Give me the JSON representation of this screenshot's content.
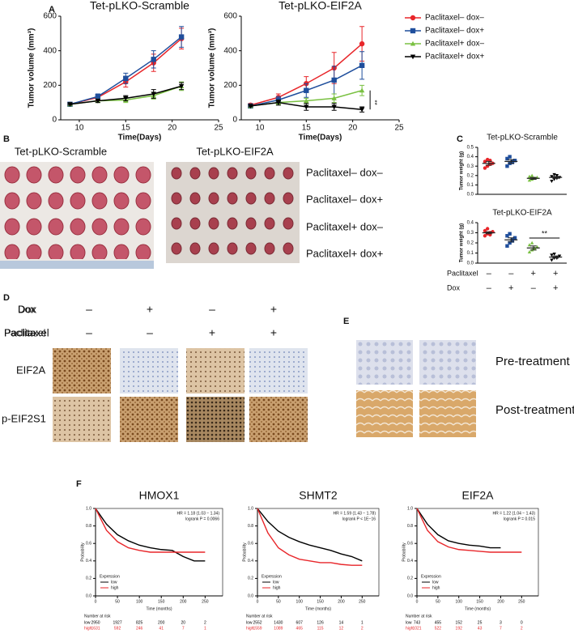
{
  "panel_labels": [
    "A",
    "B",
    "C",
    "D",
    "E",
    "F"
  ],
  "chart_data": [
    {
      "type": "line",
      "title": "Tet-pLKO-Scramble",
      "xlabel": "Time(Days)",
      "ylabel": "Tumor volume (mm³)",
      "x": [
        9,
        12,
        15,
        18,
        21
      ],
      "xlim": [
        8,
        25
      ],
      "xticks": [
        10,
        15,
        20,
        25
      ],
      "ylim": [
        0,
        600
      ],
      "yticks": [
        0,
        200,
        400,
        600
      ],
      "series": [
        {
          "name": "Paclitaxel– dox–",
          "color": "#e8262a",
          "marker": "circle",
          "values": [
            90,
            130,
            220,
            330,
            470
          ],
          "errors": [
            10,
            15,
            30,
            50,
            60
          ]
        },
        {
          "name": "Paclitaxel– dox+",
          "color": "#1f4e9c",
          "marker": "square",
          "values": [
            90,
            135,
            240,
            350,
            480
          ],
          "errors": [
            10,
            15,
            30,
            50,
            60
          ]
        },
        {
          "name": "Paclitaxel+ dox–",
          "color": "#7ac142",
          "marker": "triangle",
          "values": [
            90,
            110,
            115,
            140,
            195
          ],
          "errors": [
            5,
            10,
            15,
            20,
            25
          ]
        },
        {
          "name": "Paclitaxel+ dox+",
          "color": "#000000",
          "marker": "triangle-down",
          "values": [
            90,
            110,
            125,
            150,
            195
          ],
          "errors": [
            5,
            10,
            15,
            25,
            20
          ]
        }
      ]
    },
    {
      "type": "line",
      "title": "Tet-pLKO-EIF2A",
      "xlabel": "Time(Days)",
      "ylabel": "Tumor volume (mm³)",
      "x": [
        9,
        12,
        15,
        18,
        21
      ],
      "xlim": [
        8,
        25
      ],
      "xticks": [
        10,
        15,
        20,
        25
      ],
      "ylim": [
        0,
        600
      ],
      "yticks": [
        0,
        200,
        400,
        600
      ],
      "annotations": [
        "**"
      ],
      "series": [
        {
          "color": "#e8262a",
          "marker": "circle",
          "values": [
            85,
            130,
            210,
            300,
            440
          ],
          "errors": [
            10,
            20,
            40,
            90,
            100
          ]
        },
        {
          "color": "#1f4e9c",
          "marker": "square",
          "values": [
            80,
            115,
            170,
            230,
            315
          ],
          "errors": [
            10,
            20,
            40,
            80,
            80
          ]
        },
        {
          "color": "#7ac142",
          "marker": "triangle",
          "values": [
            80,
            100,
            110,
            125,
            170
          ],
          "errors": [
            5,
            10,
            15,
            25,
            30
          ]
        },
        {
          "color": "#000000",
          "marker": "triangle-down",
          "values": [
            80,
            100,
            75,
            75,
            60
          ],
          "errors": [
            5,
            15,
            20,
            20,
            15
          ]
        }
      ]
    },
    {
      "type": "dot",
      "title": "Tet-pLKO-Scramble",
      "ylabel": "Tumor weight (g)",
      "ylim": [
        0,
        0.5
      ],
      "yticks": [
        {
          "value": 0,
          "label": "0.0"
        },
        {
          "value": 0.1,
          "label": "0.1"
        },
        {
          "value": 0.2,
          "label": "0.2"
        },
        {
          "value": 0.3,
          "label": "0.3"
        },
        {
          "value": 0.4,
          "label": "0.4"
        },
        {
          "value": 0.5,
          "label": "0.5"
        }
      ],
      "groups": [
        {
          "color": "#e8262a",
          "marker": "circle",
          "points": [
            0.28,
            0.3,
            0.32,
            0.33,
            0.35,
            0.37,
            0.36
          ],
          "mean": 0.33,
          "error": 0.02
        },
        {
          "color": "#1f4e9c",
          "marker": "square",
          "points": [
            0.3,
            0.33,
            0.35,
            0.36,
            0.38,
            0.4,
            0.34
          ],
          "mean": 0.35,
          "error": 0.02
        },
        {
          "color": "#7ac142",
          "marker": "triangle",
          "points": [
            0.15,
            0.16,
            0.17,
            0.18,
            0.19,
            0.2,
            0.17
          ],
          "mean": 0.17,
          "error": 0.01
        },
        {
          "color": "#000000",
          "marker": "triangle-down",
          "points": [
            0.14,
            0.16,
            0.17,
            0.18,
            0.19,
            0.21,
            0.2
          ],
          "mean": 0.18,
          "error": 0.01
        }
      ]
    },
    {
      "type": "dot",
      "title": "Tet-pLKO-EIF2A",
      "ylabel": "Tumor weight (g)",
      "ylim": [
        0,
        0.4
      ],
      "yticks": [
        {
          "value": 0,
          "label": "0.0"
        },
        {
          "value": 0.1,
          "label": "0.1"
        },
        {
          "value": 0.2,
          "label": "0.2"
        },
        {
          "value": 0.3,
          "label": "0.3"
        },
        {
          "value": 0.4,
          "label": "0.4"
        }
      ],
      "annotations": [
        "**"
      ],
      "groups": [
        {
          "color": "#e8262a",
          "marker": "circle",
          "points": [
            0.27,
            0.29,
            0.3,
            0.31,
            0.32,
            0.34,
            0.28
          ],
          "mean": 0.3,
          "error": 0.01
        },
        {
          "color": "#1f4e9c",
          "marker": "square",
          "points": [
            0.17,
            0.2,
            0.23,
            0.25,
            0.27,
            0.29,
            0.22
          ],
          "mean": 0.23,
          "error": 0.02
        },
        {
          "color": "#7ac142",
          "marker": "triangle",
          "points": [
            0.11,
            0.13,
            0.15,
            0.16,
            0.18,
            0.2,
            0.14
          ],
          "mean": 0.15,
          "error": 0.02
        },
        {
          "color": "#000000",
          "marker": "triangle-down",
          "points": [
            0.03,
            0.05,
            0.06,
            0.07,
            0.08,
            0.09,
            0.05
          ],
          "mean": 0.06,
          "error": 0.01
        }
      ]
    },
    {
      "type": "km",
      "title": "HMOX1",
      "annotations": [
        "HR = 1.18 (1.03 − 1.34)",
        "logrank P = 0.0066"
      ],
      "xlabel": "Time (months)",
      "ylabel": "Probability",
      "xlim": [
        0,
        290
      ],
      "xticks": [
        0,
        50,
        100,
        150,
        200,
        250
      ],
      "ylim": [
        0,
        1
      ],
      "yticks": [
        {
          "value": 0,
          "label": "0.0"
        },
        {
          "value": 0.2,
          "label": "0.2"
        },
        {
          "value": 0.4,
          "label": "0.4"
        },
        {
          "value": 0.6,
          "label": "0.6"
        },
        {
          "value": 0.8,
          "label": "0.8"
        },
        {
          "value": 1,
          "label": "1.0"
        }
      ],
      "legend_title": "Expression",
      "at_risk_title": "Number at risk",
      "series": [
        {
          "name": "low",
          "color": "#000000",
          "x": [
            0,
            25,
            50,
            75,
            100,
            125,
            150,
            175,
            200,
            225,
            250
          ],
          "values": [
            1,
            0.82,
            0.7,
            0.63,
            0.58,
            0.55,
            0.53,
            0.52,
            0.45,
            0.4,
            0.4
          ],
          "at_risk": [
            2950,
            1927,
            825,
            200,
            20,
            2
          ]
        },
        {
          "name": "high",
          "color": "#e8262a",
          "x": [
            0,
            25,
            50,
            75,
            100,
            125,
            150,
            175,
            200,
            250
          ],
          "values": [
            1,
            0.75,
            0.62,
            0.55,
            0.52,
            0.5,
            0.5,
            0.5,
            0.5,
            0.5
          ],
          "at_risk": [
            1631,
            592,
            246,
            41,
            7,
            1
          ]
        }
      ]
    },
    {
      "type": "km",
      "title": "SHMT2",
      "annotations": [
        "HR = 1.59 (1.43 − 1.78)",
        "logrank P < 1E−16"
      ],
      "xlabel": "Time (months)",
      "ylabel": "Probability",
      "xlim": [
        0,
        290
      ],
      "xticks": [
        0,
        50,
        100,
        150,
        200,
        250
      ],
      "ylim": [
        0,
        1
      ],
      "yticks": [
        {
          "value": 0,
          "label": "0.0"
        },
        {
          "value": 0.2,
          "label": "0.2"
        },
        {
          "value": 0.4,
          "label": "0.4"
        },
        {
          "value": 0.6,
          "label": "0.6"
        },
        {
          "value": 0.8,
          "label": "0.8"
        },
        {
          "value": 1,
          "label": "1.0"
        }
      ],
      "legend_title": "Expression",
      "at_risk_title": "Number at risk",
      "series": [
        {
          "name": "low",
          "color": "#000000",
          "x": [
            0,
            25,
            50,
            75,
            100,
            125,
            150,
            175,
            200,
            225,
            250
          ],
          "values": [
            1,
            0.85,
            0.74,
            0.67,
            0.62,
            0.58,
            0.55,
            0.52,
            0.48,
            0.45,
            0.4
          ],
          "at_risk": [
            2552,
            1430,
            607,
            126,
            14,
            1
          ]
        },
        {
          "name": "high",
          "color": "#e8262a",
          "x": [
            0,
            25,
            50,
            75,
            100,
            125,
            150,
            175,
            200,
            225,
            250
          ],
          "values": [
            1,
            0.72,
            0.55,
            0.47,
            0.42,
            0.4,
            0.38,
            0.38,
            0.36,
            0.35,
            0.35
          ],
          "at_risk": [
            1559,
            1089,
            465,
            115,
            12,
            2
          ]
        }
      ]
    },
    {
      "type": "km",
      "title": "EIF2A",
      "annotations": [
        "HR = 1.22 (1.04 − 1.43)",
        "logrank P = 0.015"
      ],
      "xlabel": "Time (months)",
      "ylabel": "Probability",
      "xlim": [
        0,
        290
      ],
      "xticks": [
        0,
        50,
        100,
        150,
        200,
        250
      ],
      "ylim": [
        0,
        1
      ],
      "yticks": [
        {
          "value": 0,
          "label": "0.0"
        },
        {
          "value": 0.2,
          "label": "0.2"
        },
        {
          "value": 0.4,
          "label": "0.4"
        },
        {
          "value": 0.6,
          "label": "0.6"
        },
        {
          "value": 0.8,
          "label": "0.8"
        },
        {
          "value": 1,
          "label": "1.0"
        }
      ],
      "legend_title": "Expression",
      "at_risk_title": "Number at risk",
      "series": [
        {
          "name": "low",
          "color": "#000000",
          "x": [
            0,
            25,
            50,
            75,
            100,
            125,
            150,
            175,
            200
          ],
          "values": [
            1,
            0.82,
            0.7,
            0.63,
            0.6,
            0.58,
            0.57,
            0.55,
            0.55
          ],
          "at_risk": [
            743,
            455,
            152,
            25,
            3,
            0
          ]
        },
        {
          "name": "high",
          "color": "#e8262a",
          "x": [
            0,
            25,
            50,
            75,
            100,
            125,
            150,
            175,
            200,
            225,
            250
          ],
          "values": [
            1,
            0.75,
            0.62,
            0.56,
            0.53,
            0.52,
            0.51,
            0.5,
            0.5,
            0.5,
            0.5
          ],
          "at_risk": [
            1021,
            522,
            192,
            43,
            7,
            2
          ]
        }
      ]
    }
  ],
  "panel_b": {
    "columns": [
      "Tet-pLKO-Scramble",
      "Tet-pLKO-EIF2A"
    ],
    "rows": [
      "Paclitaxel– dox–",
      "Paclitaxel– dox+",
      "Paclitaxel+ dox–",
      "Paclitaxel+ dox+"
    ]
  },
  "panel_c": {
    "rows": [
      {
        "label": "Paclitaxel",
        "signs": [
          "–",
          "–",
          "+",
          "+"
        ]
      },
      {
        "label": "Dox",
        "signs": [
          "–",
          "+",
          "–",
          "+"
        ]
      }
    ]
  },
  "panel_d": {
    "rows": [
      {
        "label": "Dox",
        "signs": [
          "–",
          "+",
          "–",
          "+"
        ]
      },
      {
        "label": "Paclitaxel",
        "signs": [
          "–",
          "–",
          "+",
          "+"
        ]
      }
    ],
    "stains": [
      "EIF2A",
      "p-EIF2S1"
    ]
  },
  "panel_e": {
    "rows": [
      "Pre-treatment",
      "Post-treatment"
    ]
  }
}
